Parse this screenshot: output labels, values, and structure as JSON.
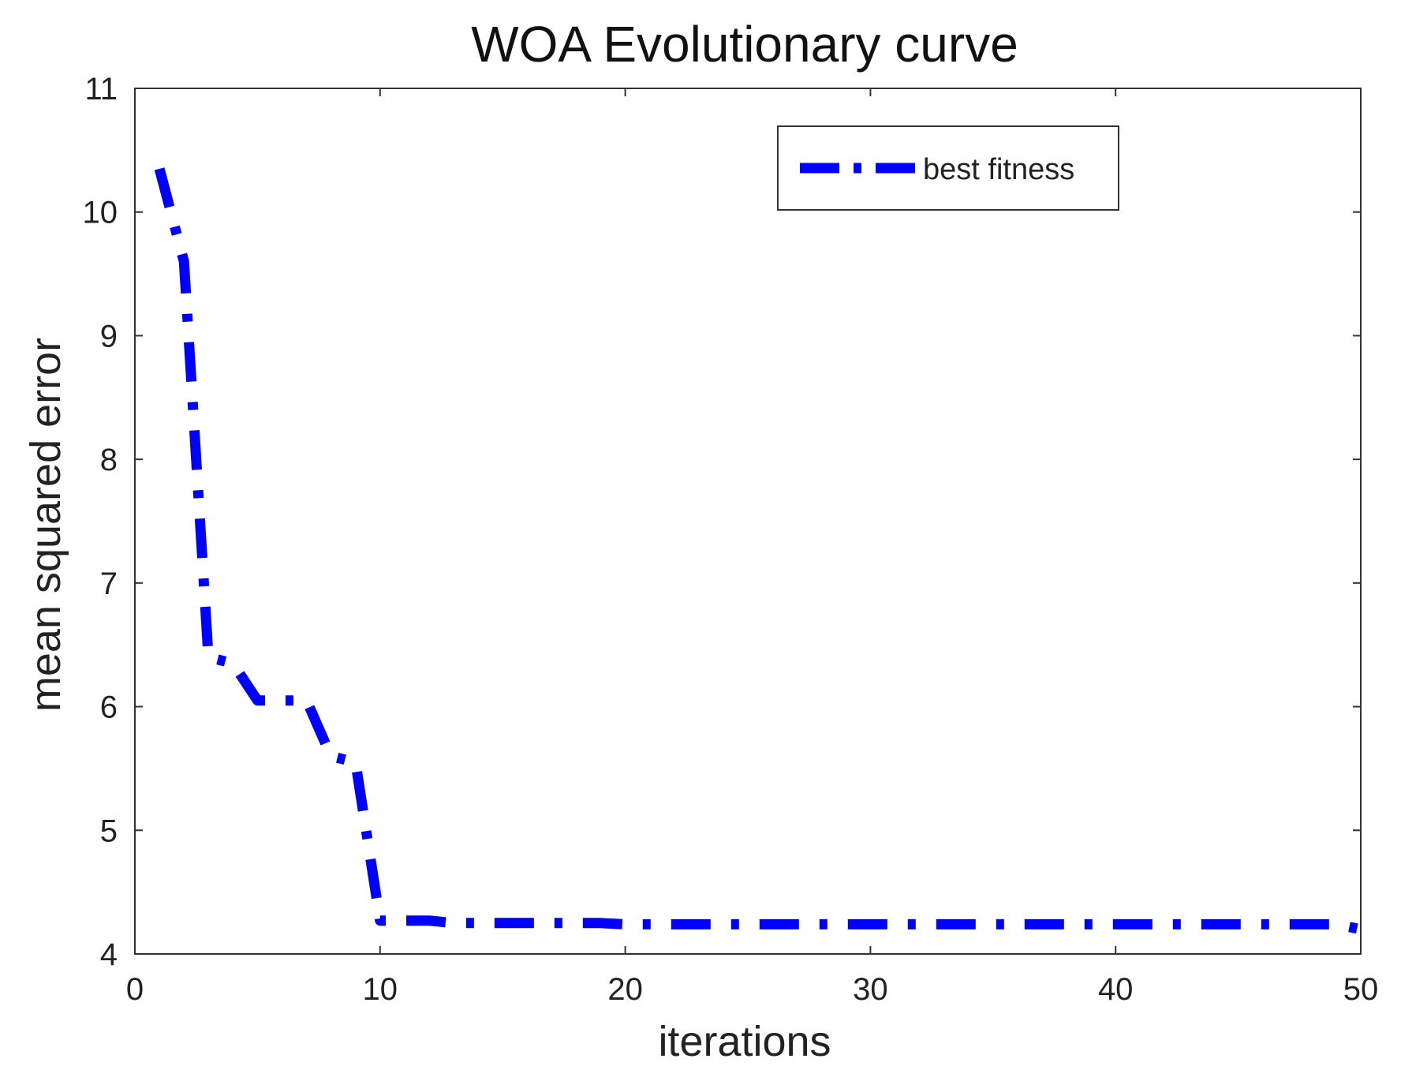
{
  "chart_data": {
    "type": "line",
    "title": "WOA Evolutionary curve",
    "xlabel": "iterations",
    "ylabel": "mean squared error",
    "xlim": [
      0,
      50
    ],
    "ylim": [
      4,
      11
    ],
    "xticks": [
      0,
      10,
      20,
      30,
      40,
      50
    ],
    "yticks": [
      4,
      5,
      6,
      7,
      8,
      9,
      10,
      11
    ],
    "grid": false,
    "legend_position": "top-right",
    "series": [
      {
        "name": "best fitness",
        "color": "#0000ff",
        "line_style": "dash-dot",
        "x": [
          1,
          2,
          3,
          4,
          5,
          6,
          7,
          8,
          9,
          10,
          11,
          12,
          13,
          14,
          15,
          16,
          17,
          18,
          19,
          20,
          21,
          22,
          23,
          24,
          25,
          26,
          27,
          28,
          29,
          30,
          31,
          32,
          33,
          34,
          35,
          36,
          37,
          38,
          39,
          40,
          41,
          42,
          43,
          44,
          45,
          46,
          47,
          48,
          49,
          50
        ],
        "y": [
          10.35,
          9.6,
          6.4,
          6.35,
          6.05,
          6.05,
          6.05,
          5.6,
          5.55,
          4.27,
          4.27,
          4.27,
          4.25,
          4.25,
          4.25,
          4.25,
          4.25,
          4.25,
          4.25,
          4.24,
          4.24,
          4.24,
          4.24,
          4.24,
          4.24,
          4.24,
          4.24,
          4.24,
          4.24,
          4.24,
          4.24,
          4.24,
          4.24,
          4.24,
          4.24,
          4.24,
          4.24,
          4.24,
          4.24,
          4.24,
          4.24,
          4.24,
          4.24,
          4.24,
          4.24,
          4.24,
          4.24,
          4.24,
          4.24,
          4.2
        ]
      }
    ]
  }
}
